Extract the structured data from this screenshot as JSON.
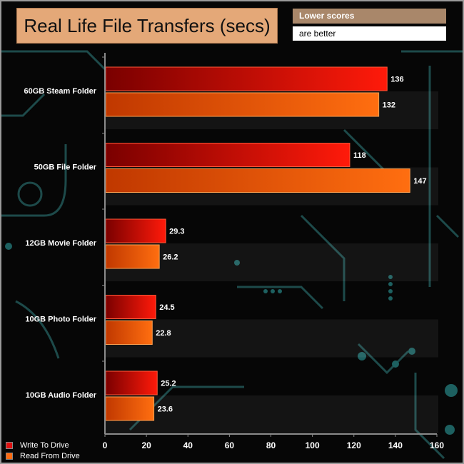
{
  "title": "Real Life File Transfers (secs)",
  "note": {
    "line1": "Lower scores",
    "line2": "are better"
  },
  "chart_data": {
    "type": "bar",
    "orientation": "horizontal",
    "title": "Real Life File Transfers (secs)",
    "categories": [
      "60GB Steam Folder",
      "50GB File Folder",
      "12GB Movie Folder",
      "10GB Photo Folder",
      "10GB Audio Folder"
    ],
    "series": [
      {
        "name": "Write To  Drive",
        "values": [
          136,
          118,
          29.3,
          24.5,
          25.2
        ],
        "color": "#e01010"
      },
      {
        "name": "Read From  Drive",
        "values": [
          132,
          147,
          26.2,
          22.8,
          23.6
        ],
        "color": "#ff6a10"
      }
    ],
    "value_labels": [
      [
        "136",
        "118",
        "29.3",
        "24.5",
        "25.2"
      ],
      [
        "132",
        "147",
        "26.2",
        "22.8",
        "23.6"
      ]
    ],
    "xlim": [
      0,
      160
    ],
    "xticks": [
      "0",
      "20",
      "40",
      "60",
      "80",
      "100",
      "120",
      "140",
      "160"
    ],
    "legend_position": "bottom-left",
    "grid": false
  }
}
